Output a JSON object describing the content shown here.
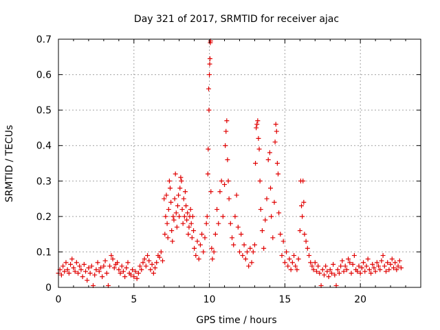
{
  "chart_data": {
    "type": "scatter",
    "title": "Day 321 of 2017, SRMTID for receiver ajac",
    "xlabel": "GPS time / hours",
    "ylabel": "SRMTID / TECUs",
    "xlim": [
      0,
      24
    ],
    "ylim": [
      0,
      0.7
    ],
    "xticks": [
      0,
      5,
      10,
      15,
      20
    ],
    "yticks": [
      0,
      0.1,
      0.2,
      0.3,
      0.4,
      0.5,
      0.6,
      0.7
    ],
    "xtick_labels": [
      "0",
      "5",
      "10",
      "15",
      "20"
    ],
    "ytick_labels": [
      "0",
      "0.1",
      "0.2",
      "0.3",
      "0.4",
      "0.5",
      "0.6",
      "0.7"
    ],
    "grid": true,
    "marker": "+",
    "color": "#e00000",
    "series": [
      {
        "name": "SRMTID",
        "points": [
          [
            0.0,
            0.04
          ],
          [
            0.1,
            0.05
          ],
          [
            0.2,
            0.035
          ],
          [
            0.3,
            0.06
          ],
          [
            0.4,
            0.045
          ],
          [
            0.5,
            0.07
          ],
          [
            0.6,
            0.05
          ],
          [
            0.7,
            0.04
          ],
          [
            0.8,
            0.065
          ],
          [
            0.9,
            0.08
          ],
          [
            1.0,
            0.055
          ],
          [
            1.1,
            0.045
          ],
          [
            1.2,
            0.07
          ],
          [
            1.3,
            0.04
          ],
          [
            1.4,
            0.06
          ],
          [
            1.5,
            0.05
          ],
          [
            1.6,
            0.03
          ],
          [
            1.7,
            0.065
          ],
          [
            1.8,
            0.045
          ],
          [
            1.9,
            0.02
          ],
          [
            2.0,
            0.055
          ],
          [
            2.1,
            0.04
          ],
          [
            2.2,
            0.06
          ],
          [
            2.3,
            0.005
          ],
          [
            2.4,
            0.035
          ],
          [
            2.5,
            0.05
          ],
          [
            2.6,
            0.07
          ],
          [
            2.7,
            0.045
          ],
          [
            2.8,
            0.055
          ],
          [
            2.9,
            0.03
          ],
          [
            3.0,
            0.06
          ],
          [
            3.1,
            0.075
          ],
          [
            3.2,
            0.04
          ],
          [
            3.3,
            0.005
          ],
          [
            3.4,
            0.06
          ],
          [
            3.5,
            0.09
          ],
          [
            3.6,
            0.08
          ],
          [
            3.7,
            0.055
          ],
          [
            3.8,
            0.065
          ],
          [
            3.9,
            0.07
          ],
          [
            4.0,
            0.05
          ],
          [
            4.1,
            0.04
          ],
          [
            4.2,
            0.06
          ],
          [
            4.3,
            0.045
          ],
          [
            4.4,
            0.03
          ],
          [
            4.5,
            0.055
          ],
          [
            4.6,
            0.07
          ],
          [
            4.7,
            0.04
          ],
          [
            4.8,
            0.035
          ],
          [
            4.9,
            0.05
          ],
          [
            5.0,
            0.03
          ],
          [
            5.1,
            0.045
          ],
          [
            5.2,
            0.025
          ],
          [
            5.3,
            0.04
          ],
          [
            5.4,
            0.06
          ],
          [
            5.5,
            0.05
          ],
          [
            5.6,
            0.07
          ],
          [
            5.7,
            0.08
          ],
          [
            5.8,
            0.06
          ],
          [
            5.9,
            0.09
          ],
          [
            6.0,
            0.075
          ],
          [
            6.1,
            0.05
          ],
          [
            6.2,
            0.065
          ],
          [
            6.3,
            0.04
          ],
          [
            6.4,
            0.055
          ],
          [
            6.5,
            0.07
          ],
          [
            6.6,
            0.09
          ],
          [
            6.7,
            0.085
          ],
          [
            6.8,
            0.1
          ],
          [
            6.9,
            0.075
          ],
          [
            7.0,
            0.25
          ],
          [
            7.05,
            0.15
          ],
          [
            7.1,
            0.2
          ],
          [
            7.15,
            0.26
          ],
          [
            7.2,
            0.18
          ],
          [
            7.25,
            0.14
          ],
          [
            7.3,
            0.22
          ],
          [
            7.35,
            0.3
          ],
          [
            7.4,
            0.28
          ],
          [
            7.45,
            0.24
          ],
          [
            7.5,
            0.16
          ],
          [
            7.55,
            0.13
          ],
          [
            7.6,
            0.2
          ],
          [
            7.65,
            0.19
          ],
          [
            7.7,
            0.25
          ],
          [
            7.75,
            0.32
          ],
          [
            7.8,
            0.21
          ],
          [
            7.85,
            0.17
          ],
          [
            7.9,
            0.23
          ],
          [
            7.95,
            0.26
          ],
          [
            8.0,
            0.2
          ],
          [
            8.05,
            0.28
          ],
          [
            8.1,
            0.31
          ],
          [
            8.15,
            0.3
          ],
          [
            8.2,
            0.22
          ],
          [
            8.25,
            0.18
          ],
          [
            8.3,
            0.25
          ],
          [
            8.35,
            0.2
          ],
          [
            8.4,
            0.27
          ],
          [
            8.45,
            0.23
          ],
          [
            8.5,
            0.19
          ],
          [
            8.55,
            0.21
          ],
          [
            8.6,
            0.15
          ],
          [
            8.65,
            0.17
          ],
          [
            8.7,
            0.2
          ],
          [
            8.75,
            0.22
          ],
          [
            8.8,
            0.18
          ],
          [
            8.85,
            0.14
          ],
          [
            8.9,
            0.2
          ],
          [
            8.95,
            0.16
          ],
          [
            9.0,
            0.11
          ],
          [
            9.1,
            0.09
          ],
          [
            9.2,
            0.13
          ],
          [
            9.3,
            0.08
          ],
          [
            9.4,
            0.12
          ],
          [
            9.5,
            0.15
          ],
          [
            9.6,
            0.1
          ],
          [
            9.7,
            0.14
          ],
          [
            9.8,
            0.18
          ],
          [
            9.85,
            0.2
          ],
          [
            9.9,
            0.32
          ],
          [
            9.92,
            0.39
          ],
          [
            9.95,
            0.56
          ],
          [
            9.97,
            0.5
          ],
          [
            10.0,
            0.6
          ],
          [
            10.02,
            0.63
          ],
          [
            10.04,
            0.645
          ],
          [
            10.06,
            0.69
          ],
          [
            10.08,
            0.695
          ],
          [
            10.1,
            0.27
          ],
          [
            10.15,
            0.11
          ],
          [
            10.2,
            0.08
          ],
          [
            10.3,
            0.1
          ],
          [
            10.4,
            0.15
          ],
          [
            10.5,
            0.22
          ],
          [
            10.6,
            0.18
          ],
          [
            10.7,
            0.27
          ],
          [
            10.8,
            0.3
          ],
          [
            10.9,
            0.2
          ],
          [
            11.0,
            0.29
          ],
          [
            11.05,
            0.4
          ],
          [
            11.1,
            0.44
          ],
          [
            11.15,
            0.47
          ],
          [
            11.2,
            0.36
          ],
          [
            11.25,
            0.3
          ],
          [
            11.3,
            0.25
          ],
          [
            11.4,
            0.18
          ],
          [
            11.5,
            0.14
          ],
          [
            11.6,
            0.12
          ],
          [
            11.7,
            0.2
          ],
          [
            11.8,
            0.26
          ],
          [
            11.9,
            0.17
          ],
          [
            12.0,
            0.1
          ],
          [
            12.1,
            0.15
          ],
          [
            12.2,
            0.09
          ],
          [
            12.3,
            0.12
          ],
          [
            12.4,
            0.08
          ],
          [
            12.5,
            0.1
          ],
          [
            12.6,
            0.06
          ],
          [
            12.7,
            0.11
          ],
          [
            12.8,
            0.07
          ],
          [
            12.9,
            0.1
          ],
          [
            13.0,
            0.12
          ],
          [
            13.05,
            0.35
          ],
          [
            13.1,
            0.45
          ],
          [
            13.15,
            0.46
          ],
          [
            13.2,
            0.47
          ],
          [
            13.25,
            0.42
          ],
          [
            13.3,
            0.39
          ],
          [
            13.35,
            0.3
          ],
          [
            13.4,
            0.22
          ],
          [
            13.5,
            0.16
          ],
          [
            13.6,
            0.11
          ],
          [
            13.7,
            0.19
          ],
          [
            13.8,
            0.25
          ],
          [
            13.9,
            0.36
          ],
          [
            14.0,
            0.38
          ],
          [
            14.05,
            0.28
          ],
          [
            14.1,
            0.2
          ],
          [
            14.2,
            0.14
          ],
          [
            14.3,
            0.24
          ],
          [
            14.35,
            0.41
          ],
          [
            14.4,
            0.46
          ],
          [
            14.45,
            0.44
          ],
          [
            14.5,
            0.35
          ],
          [
            14.55,
            0.32
          ],
          [
            14.6,
            0.21
          ],
          [
            14.7,
            0.15
          ],
          [
            14.8,
            0.09
          ],
          [
            14.9,
            0.13
          ],
          [
            15.0,
            0.07
          ],
          [
            15.1,
            0.1
          ],
          [
            15.2,
            0.06
          ],
          [
            15.3,
            0.08
          ],
          [
            15.4,
            0.05
          ],
          [
            15.5,
            0.07
          ],
          [
            15.6,
            0.09
          ],
          [
            15.7,
            0.06
          ],
          [
            15.8,
            0.05
          ],
          [
            15.9,
            0.08
          ],
          [
            16.0,
            0.16
          ],
          [
            16.05,
            0.3
          ],
          [
            16.1,
            0.23
          ],
          [
            16.15,
            0.2
          ],
          [
            16.2,
            0.3
          ],
          [
            16.25,
            0.24
          ],
          [
            16.3,
            0.15
          ],
          [
            16.4,
            0.13
          ],
          [
            16.5,
            0.11
          ],
          [
            16.6,
            0.09
          ],
          [
            16.7,
            0.07
          ],
          [
            16.8,
            0.06
          ],
          [
            16.9,
            0.05
          ],
          [
            17.0,
            0.07
          ],
          [
            17.1,
            0.045
          ],
          [
            17.2,
            0.06
          ],
          [
            17.3,
            0.04
          ],
          [
            17.4,
            0.005
          ],
          [
            17.5,
            0.05
          ],
          [
            17.6,
            0.035
          ],
          [
            17.7,
            0.06
          ],
          [
            17.8,
            0.045
          ],
          [
            17.9,
            0.03
          ],
          [
            18.0,
            0.05
          ],
          [
            18.1,
            0.04
          ],
          [
            18.2,
            0.065
          ],
          [
            18.3,
            0.035
          ],
          [
            18.4,
            0.005
          ],
          [
            18.5,
            0.05
          ],
          [
            18.6,
            0.04
          ],
          [
            18.7,
            0.06
          ],
          [
            18.8,
            0.075
          ],
          [
            18.9,
            0.045
          ],
          [
            19.0,
            0.06
          ],
          [
            19.1,
            0.05
          ],
          [
            19.2,
            0.08
          ],
          [
            19.3,
            0.07
          ],
          [
            19.4,
            0.04
          ],
          [
            19.5,
            0.065
          ],
          [
            19.6,
            0.09
          ],
          [
            19.7,
            0.05
          ],
          [
            19.8,
            0.045
          ],
          [
            19.9,
            0.06
          ],
          [
            20.0,
            0.04
          ],
          [
            20.1,
            0.055
          ],
          [
            20.2,
            0.07
          ],
          [
            20.3,
            0.045
          ],
          [
            20.4,
            0.06
          ],
          [
            20.5,
            0.08
          ],
          [
            20.6,
            0.05
          ],
          [
            20.7,
            0.04
          ],
          [
            20.8,
            0.065
          ],
          [
            20.9,
            0.055
          ],
          [
            21.0,
            0.045
          ],
          [
            21.1,
            0.07
          ],
          [
            21.2,
            0.06
          ],
          [
            21.3,
            0.05
          ],
          [
            21.4,
            0.075
          ],
          [
            21.5,
            0.09
          ],
          [
            21.6,
            0.06
          ],
          [
            21.7,
            0.045
          ],
          [
            21.8,
            0.07
          ],
          [
            21.9,
            0.05
          ],
          [
            22.0,
            0.065
          ],
          [
            22.1,
            0.08
          ],
          [
            22.2,
            0.055
          ],
          [
            22.3,
            0.07
          ],
          [
            22.4,
            0.05
          ],
          [
            22.5,
            0.06
          ],
          [
            22.6,
            0.075
          ],
          [
            22.7,
            0.055
          ]
        ]
      }
    ]
  }
}
